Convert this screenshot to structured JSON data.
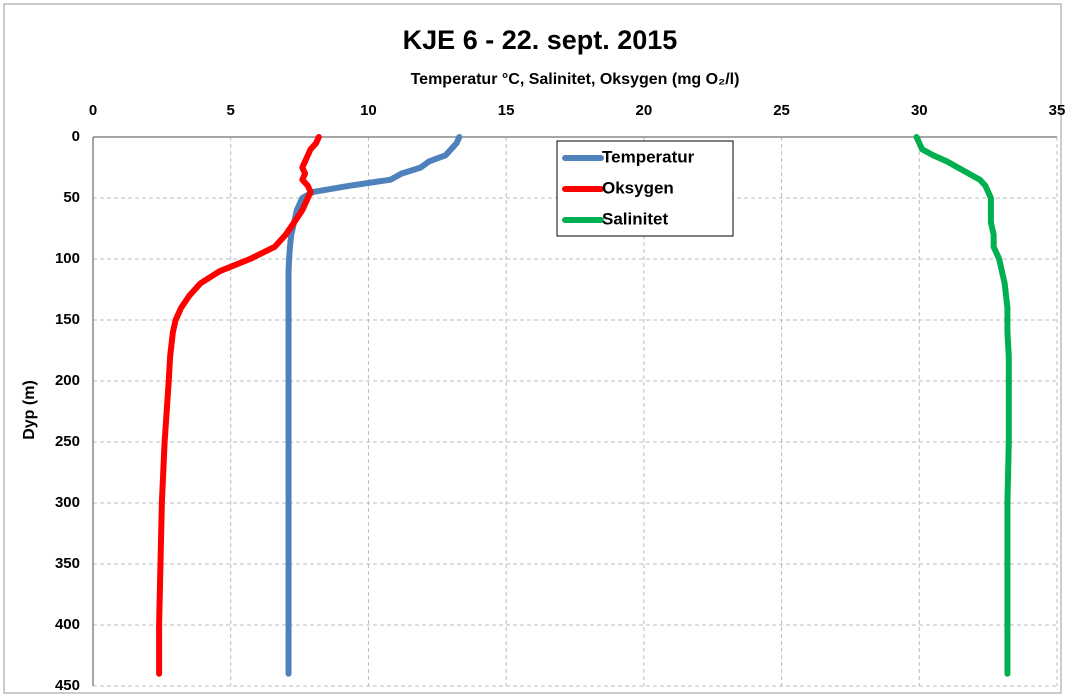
{
  "chart_data": {
    "type": "line",
    "title": "KJE 6 - 22. sept. 2015",
    "x_label": "Temperatur °C, Salinitet, Oksygen (mg O₂/l)",
    "y_label": "Dyp (m)",
    "depth": [
      0,
      5,
      10,
      15,
      20,
      25,
      30,
      35,
      40,
      45,
      50,
      60,
      70,
      80,
      90,
      100,
      110,
      120,
      130,
      140,
      150,
      160,
      180,
      200,
      250,
      300,
      350,
      400,
      440
    ],
    "series": [
      {
        "name": "Temperatur",
        "color": "#4f81bd",
        "values": [
          13.3,
          13.2,
          13.0,
          12.8,
          12.2,
          11.9,
          11.2,
          10.8,
          9.3,
          8.0,
          7.6,
          7.4,
          7.3,
          7.2,
          7.15,
          7.12,
          7.1,
          7.1,
          7.1,
          7.1,
          7.1,
          7.1,
          7.1,
          7.1,
          7.1,
          7.1,
          7.1,
          7.1,
          7.1
        ]
      },
      {
        "name": "Oksygen",
        "color": "#ff0000",
        "values": [
          8.2,
          8.1,
          7.9,
          7.8,
          7.7,
          7.6,
          7.7,
          7.6,
          7.8,
          7.9,
          7.8,
          7.6,
          7.3,
          7.0,
          6.6,
          5.7,
          4.6,
          3.9,
          3.5,
          3.2,
          3.0,
          2.9,
          2.8,
          2.75,
          2.6,
          2.5,
          2.45,
          2.4,
          2.4
        ]
      },
      {
        "name": "Salinitet",
        "color": "#00b050",
        "values": [
          29.9,
          30.0,
          30.1,
          30.5,
          31.0,
          31.4,
          31.8,
          32.2,
          32.4,
          32.5,
          32.6,
          32.6,
          32.6,
          32.7,
          32.7,
          32.9,
          33.0,
          33.1,
          33.15,
          33.2,
          33.2,
          33.2,
          33.25,
          33.25,
          33.25,
          33.2,
          33.2,
          33.2,
          33.2
        ]
      }
    ],
    "xlim": [
      0,
      35
    ],
    "xticks": [
      0,
      5,
      10,
      15,
      20,
      25,
      30,
      35
    ],
    "ylim": [
      0,
      450
    ],
    "yticks": [
      0,
      50,
      100,
      150,
      200,
      250,
      300,
      350,
      400,
      450
    ],
    "y_inverted": true,
    "grid": true,
    "legend": "top"
  }
}
